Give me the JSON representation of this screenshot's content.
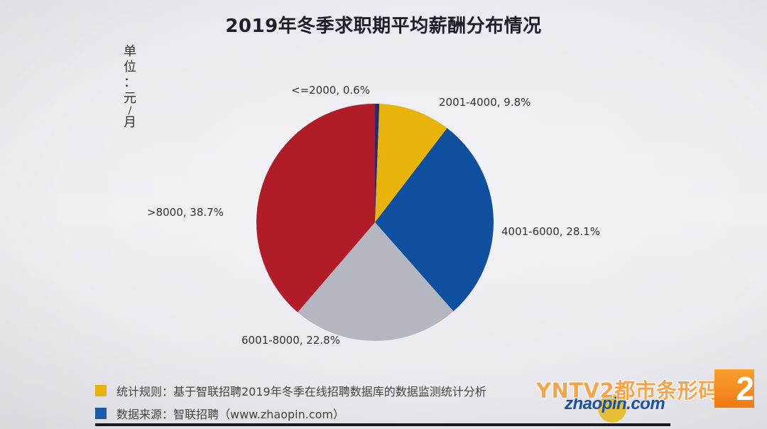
{
  "header": {
    "title": "2019年冬季求职期平均薪酬分布情况",
    "unit_label": [
      "单",
      "位",
      "：",
      "元",
      "/",
      "月"
    ]
  },
  "chart_data": {
    "type": "pie",
    "title": "2019年冬季求职期平均薪酬分布情况",
    "unit": "单位：元/月",
    "categories": [
      "<=2000",
      "2001-4000",
      "4001-6000",
      "6001-8000",
      ">8000"
    ],
    "values": [
      0.6,
      9.8,
      28.1,
      22.8,
      38.7
    ],
    "value_unit": "%",
    "colors": [
      "#2a2a6a",
      "#e8b40c",
      "#0f4fa0",
      "#b4b6c0",
      "#b01c28"
    ],
    "labels": [
      "<=2000, 0.6%",
      "2001-4000, 9.8%",
      "4001-6000, 28.1%",
      "6001-8000, 22.8%",
      ">8000, 38.7%"
    ],
    "start_angle_deg": 0,
    "direction": "clockwise",
    "legend_position": "none (data labels outside)"
  },
  "notes": [
    {
      "color": "#e8b40c",
      "text": "统计规则：基于智联招聘2019年冬季在线招聘数据库的数据监测统计分析"
    },
    {
      "color": "#1a5aa8",
      "text": "数据来源：智联招聘（www.zhaopin.com）"
    }
  ],
  "branding": {
    "logo_text": "zhaopin.com",
    "watermark": "YNTV2都市条形码",
    "channel_number": "2"
  }
}
